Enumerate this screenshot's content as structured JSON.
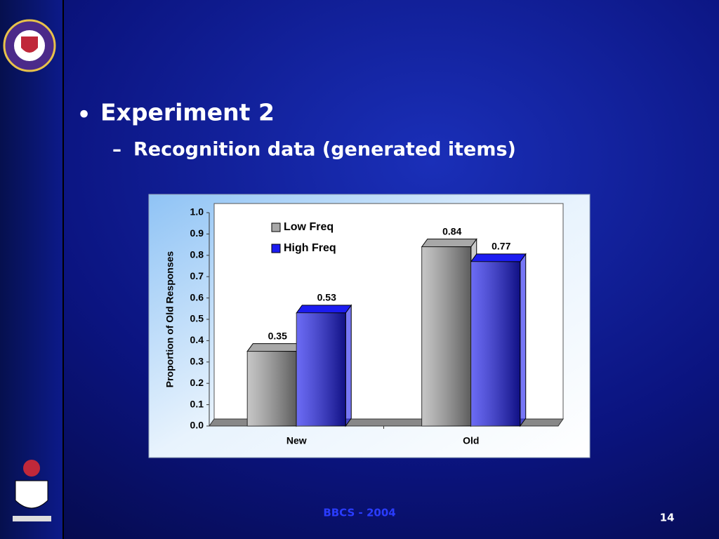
{
  "slide": {
    "bullet": "Experiment 2",
    "sub_bullet": "Recognition data (generated items)",
    "footer": "BBCS - 2004",
    "page_number": "14"
  },
  "chart_data": {
    "type": "bar",
    "y_label": "Proportion of Old Responses",
    "categories": [
      "New",
      "Old"
    ],
    "series": [
      {
        "name": "Low Freq",
        "color": "#a8a8a8",
        "values": [
          0.35,
          0.84
        ]
      },
      {
        "name": "High Freq",
        "color": "#1c1cf0",
        "values": [
          0.53,
          0.77
        ]
      }
    ],
    "ylim": [
      0,
      1
    ],
    "yticks": [
      {
        "value": 0,
        "label": "0.0"
      },
      0.1,
      0.2,
      0.3,
      0.4,
      0.5,
      0.6,
      0.7,
      0.8,
      0.9,
      {
        "value": 1,
        "label": "1.0"
      }
    ],
    "grid": false,
    "legend": "top"
  }
}
